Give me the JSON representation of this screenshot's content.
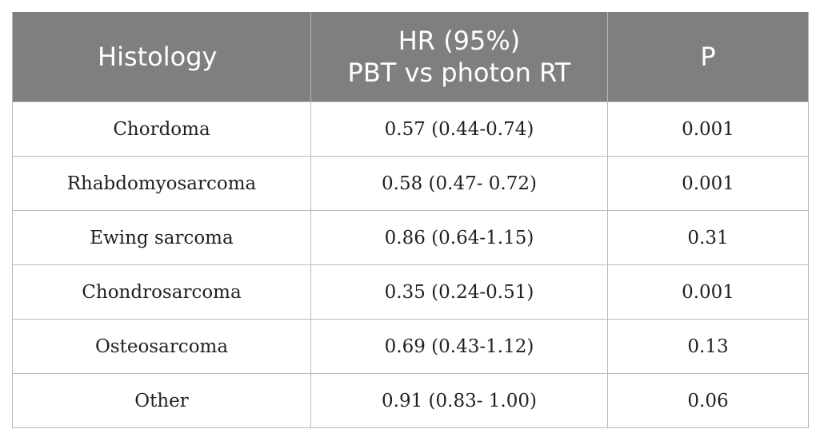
{
  "table": {
    "headers": {
      "histology": "Histology",
      "hr_line1": "HR (95%)",
      "hr_line2": "PBT vs photon RT",
      "p": "P"
    },
    "rows": [
      {
        "histology": "Chordoma",
        "hr": "0.57 (0.44-0.74)",
        "p": "0.001"
      },
      {
        "histology": "Rhabdomyosarcoma",
        "hr": "0.58 (0.47- 0.72)",
        "p": "0.001"
      },
      {
        "histology": "Ewing sarcoma",
        "hr": "0.86 (0.64-1.15)",
        "p": "0.31"
      },
      {
        "histology": "Chondrosarcoma",
        "hr": "0.35 (0.24-0.51)",
        "p": "0.001"
      },
      {
        "histology": "Osteosarcoma",
        "hr": "0.69 (0.43-1.12)",
        "p": "0.13"
      },
      {
        "histology": "Other",
        "hr": "0.91 (0.83- 1.00)",
        "p": "0.06"
      }
    ]
  },
  "colors": {
    "header_bg": "#7f7f7f",
    "header_text": "#ffffff",
    "grid": "#b9b9b9",
    "body_text": "#231f20"
  }
}
